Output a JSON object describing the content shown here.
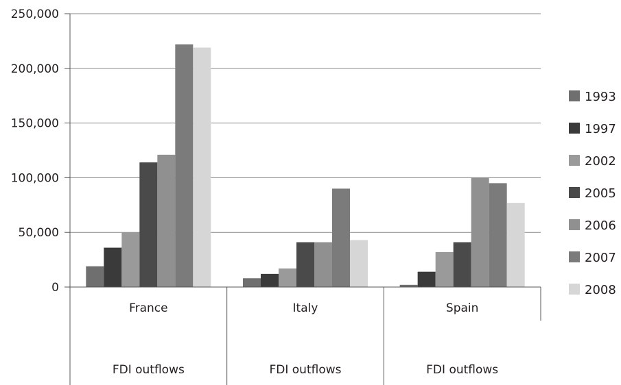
{
  "chart_data": {
    "type": "bar",
    "categories": [
      "France",
      "Italy",
      "Spain"
    ],
    "group_labels": [
      "FDI outflows",
      "FDI outflows",
      "FDI outflows"
    ],
    "series": [
      {
        "name": "1993",
        "values": [
          19000,
          8000,
          2000
        ],
        "color": "#6f6f6f"
      },
      {
        "name": "1997",
        "values": [
          36000,
          12000,
          14000
        ],
        "color": "#3a3a3a"
      },
      {
        "name": "2002",
        "values": [
          50000,
          17000,
          32000
        ],
        "color": "#9a9a9a"
      },
      {
        "name": "2005",
        "values": [
          114000,
          41000,
          41000
        ],
        "color": "#4a4a4a"
      },
      {
        "name": "2006",
        "values": [
          121000,
          41000,
          100000
        ],
        "color": "#909090"
      },
      {
        "name": "2007",
        "values": [
          222000,
          90000,
          95000
        ],
        "color": "#7b7b7b"
      },
      {
        "name": "2008",
        "values": [
          219000,
          43000,
          77000
        ],
        "color": "#d6d6d6"
      }
    ],
    "y_ticks": [
      "0",
      "50,000",
      "100,000",
      "150,000",
      "200,000",
      "250,000"
    ],
    "ylim": [
      0,
      250000
    ],
    "grid": true,
    "legend_position": "right"
  }
}
